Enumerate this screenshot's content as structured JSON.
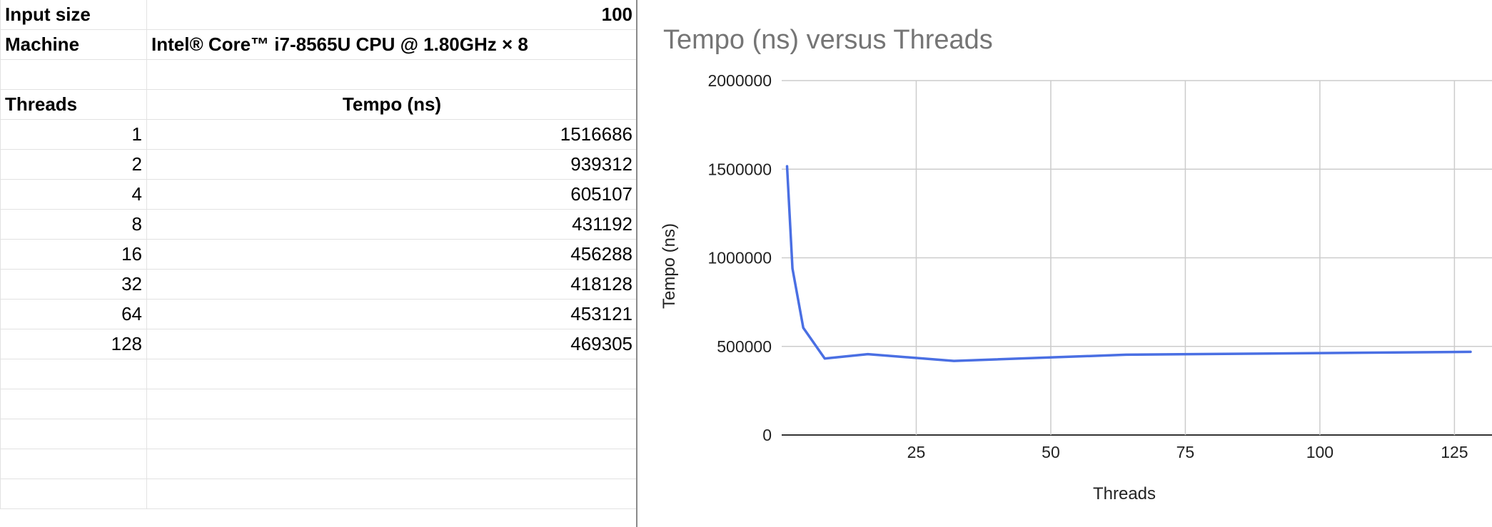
{
  "sheet": {
    "input_size_label": "Input size",
    "input_size_value": "100",
    "machine_label": "Machine",
    "machine_value": "Intel® Core™ i7-8565U CPU @ 1.80GHz × 8",
    "threads_header": "Threads",
    "tempo_header": "Tempo (ns)",
    "rows": [
      {
        "threads": "1",
        "tempo": "1516686"
      },
      {
        "threads": "2",
        "tempo": "939312"
      },
      {
        "threads": "4",
        "tempo": "605107"
      },
      {
        "threads": "8",
        "tempo": "431192"
      },
      {
        "threads": "16",
        "tempo": "456288"
      },
      {
        "threads": "32",
        "tempo": "418128"
      },
      {
        "threads": "64",
        "tempo": "453121"
      },
      {
        "threads": "128",
        "tempo": "469305"
      }
    ]
  },
  "chart_data": {
    "type": "line",
    "title": "Tempo (ns) versus Threads",
    "xlabel": "Threads",
    "ylabel": "Tempo (ns)",
    "x": [
      1,
      2,
      4,
      8,
      16,
      32,
      64,
      128
    ],
    "series": [
      {
        "values": [
          1516686,
          939312,
          605107,
          431192,
          456288,
          418128,
          453121,
          469305
        ],
        "color": "#4a6fe3"
      }
    ],
    "xlim": [
      0,
      128
    ],
    "ylim": [
      0,
      2000000
    ],
    "xticks": [
      25,
      50,
      75,
      100,
      125
    ],
    "yticks": [
      0,
      500000,
      1000000,
      1500000,
      2000000
    ],
    "grid": true,
    "legend": "none"
  }
}
